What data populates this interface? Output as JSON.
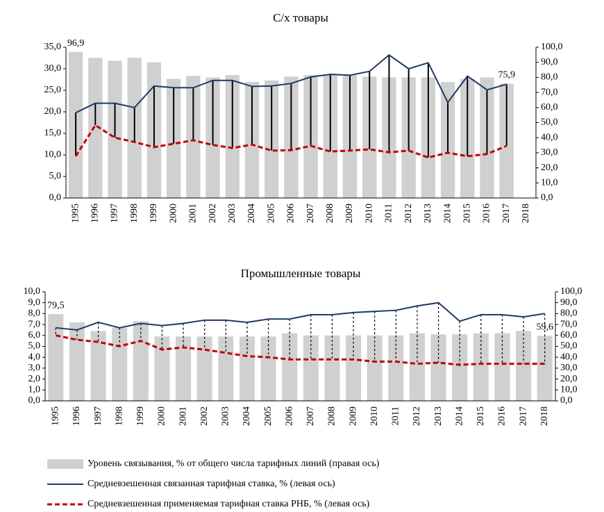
{
  "chart_data": [
    {
      "type": "bar-line",
      "title": "С/х товары",
      "drop_lines": "solid",
      "categories": [
        "1995",
        "1996",
        "1997",
        "1998",
        "1999",
        "2000",
        "2001",
        "2002",
        "2003",
        "2004",
        "2005",
        "2006",
        "2007",
        "2008",
        "2009",
        "2010",
        "2011",
        "2012",
        "2013",
        "2014",
        "2015",
        "2016",
        "2017",
        "2018"
      ],
      "series": [
        {
          "name": "Уровень связывания, % от общего числа тарифных линий (правая ось)",
          "type": "bar",
          "axis": "y2",
          "color": "#d0d0d0",
          "values": [
            96.9,
            93,
            91,
            93,
            90,
            79,
            81,
            80,
            81.5,
            77,
            78,
            80.5,
            81.5,
            81.5,
            81.5,
            80.5,
            80,
            80,
            80,
            77,
            79,
            80,
            75.9,
            null
          ],
          "value_labels": [
            "96,9",
            null,
            null,
            null,
            null,
            null,
            null,
            null,
            null,
            null,
            null,
            null,
            null,
            null,
            null,
            null,
            null,
            null,
            null,
            null,
            null,
            null,
            "75,9",
            null
          ]
        },
        {
          "name": "Средневзешенная связанная тарифная ставка, % (левая ось)",
          "type": "line",
          "color": "#1f3864",
          "values": [
            19.8,
            22.0,
            22.0,
            21.0,
            26.0,
            25.6,
            25.6,
            27.3,
            27.3,
            25.9,
            26.0,
            26.6,
            28.1,
            28.7,
            28.5,
            29.4,
            33.2,
            30.0,
            31.4,
            22.2,
            28.3,
            25.1,
            26.4,
            null
          ]
        },
        {
          "name": "Средневзешенная применяемая тарифная ставка РНБ, %  (левая ось)",
          "type": "line",
          "dash": true,
          "color": "#c00000",
          "values": [
            9.7,
            16.9,
            14.0,
            13.0,
            11.8,
            12.6,
            13.4,
            12.3,
            11.6,
            12.4,
            11.0,
            11.1,
            12.1,
            10.8,
            11.0,
            11.3,
            10.6,
            11.0,
            9.4,
            10.5,
            9.7,
            10.2,
            12.1,
            null
          ]
        }
      ],
      "ylim": [
        0,
        35
      ],
      "yticks": [
        {
          "value": 0,
          "label": "0,0"
        },
        {
          "value": 5,
          "label": "5,0"
        },
        {
          "value": 10,
          "label": "10,0"
        },
        {
          "value": 15,
          "label": "15,0"
        },
        {
          "value": 20,
          "label": "20,0"
        },
        {
          "value": 25,
          "label": "25,0"
        },
        {
          "value": 30,
          "label": "30,0"
        },
        {
          "value": 35,
          "label": "35,0"
        }
      ],
      "y2lim": [
        0,
        100
      ],
      "y2ticks": [
        {
          "value": 0,
          "label": "0,0"
        },
        {
          "value": 10,
          "label": "10,0"
        },
        {
          "value": 20,
          "label": "20,0"
        },
        {
          "value": 30,
          "label": "30,0"
        },
        {
          "value": 40,
          "label": "40,0"
        },
        {
          "value": 50,
          "label": "50,0"
        },
        {
          "value": 60,
          "label": "60,0"
        },
        {
          "value": 70,
          "label": "70,0"
        },
        {
          "value": 80,
          "label": "80,0"
        },
        {
          "value": 90,
          "label": "90,0"
        },
        {
          "value": 100,
          "label": "100,0"
        }
      ]
    },
    {
      "type": "bar-line",
      "title": "Промышленные товары",
      "drop_lines": "dashed",
      "categories": [
        "1995",
        "1996",
        "1997",
        "1998",
        "1999",
        "2000",
        "2001",
        "2002",
        "2003",
        "2004",
        "2005",
        "2006",
        "2007",
        "2008",
        "2009",
        "2010",
        "2011",
        "2012",
        "2013",
        "2014",
        "2015",
        "2016",
        "2017",
        "2018"
      ],
      "series": [
        {
          "type": "bar",
          "axis": "y2",
          "color": "#d0d0d0",
          "values": [
            79.5,
            72,
            64,
            67,
            73,
            59,
            59,
            59,
            59,
            59,
            59,
            62,
            60,
            60,
            60,
            60,
            60,
            62,
            61,
            61,
            62,
            62,
            64,
            59.6
          ],
          "value_labels": [
            "79,5",
            null,
            null,
            null,
            null,
            null,
            null,
            null,
            null,
            null,
            null,
            null,
            null,
            null,
            null,
            null,
            null,
            null,
            null,
            null,
            null,
            null,
            null,
            "59,6"
          ]
        },
        {
          "type": "line",
          "color": "#1f3864",
          "values": [
            6.7,
            6.5,
            7.2,
            6.7,
            7.1,
            6.9,
            7.1,
            7.4,
            7.4,
            7.2,
            7.5,
            7.5,
            7.9,
            7.9,
            8.1,
            8.2,
            8.3,
            8.7,
            9.0,
            7.3,
            7.9,
            7.9,
            7.7,
            8.0
          ]
        },
        {
          "type": "line",
          "dash": true,
          "color": "#c00000",
          "values": [
            6.0,
            5.6,
            5.4,
            5.0,
            5.5,
            4.7,
            4.9,
            4.7,
            4.4,
            4.1,
            4.0,
            3.8,
            3.8,
            3.8,
            3.8,
            3.6,
            3.6,
            3.4,
            3.5,
            3.3,
            3.4,
            3.4,
            3.4,
            3.4
          ]
        }
      ],
      "ylim": [
        0,
        10
      ],
      "yticks": [
        {
          "value": 0,
          "label": "0,0"
        },
        {
          "value": 1,
          "label": "1,0"
        },
        {
          "value": 2,
          "label": "2,0"
        },
        {
          "value": 3,
          "label": "3,0"
        },
        {
          "value": 4,
          "label": "4,0"
        },
        {
          "value": 5,
          "label": "5,0"
        },
        {
          "value": 6,
          "label": "6,0"
        },
        {
          "value": 7,
          "label": "7,0"
        },
        {
          "value": 8,
          "label": "8,0"
        },
        {
          "value": 9,
          "label": "9,0"
        },
        {
          "value": 10,
          "label": "10,0"
        }
      ],
      "y2lim": [
        0,
        100
      ],
      "y2ticks": [
        {
          "value": 0,
          "label": "0,0"
        },
        {
          "value": 10,
          "label": "10,0"
        },
        {
          "value": 20,
          "label": "20,0"
        },
        {
          "value": 30,
          "label": "30,0"
        },
        {
          "value": 40,
          "label": "40,0"
        },
        {
          "value": 50,
          "label": "50,0"
        },
        {
          "value": 60,
          "label": "60,0"
        },
        {
          "value": 70,
          "label": "70,0"
        },
        {
          "value": 80,
          "label": "80,0"
        },
        {
          "value": 90,
          "label": "90,0"
        },
        {
          "value": 100,
          "label": "100,0"
        }
      ]
    }
  ]
}
